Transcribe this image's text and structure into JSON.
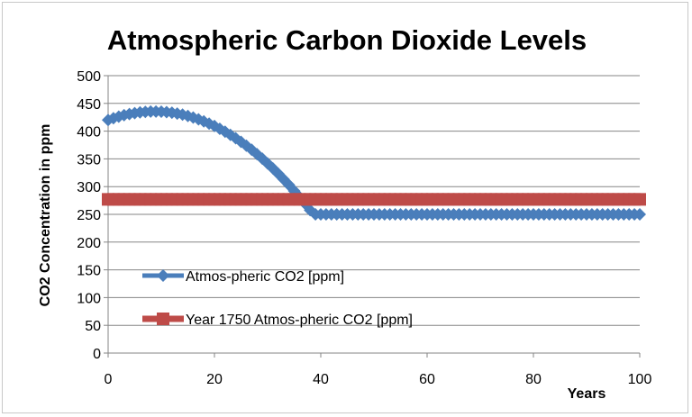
{
  "chart_data": {
    "type": "line",
    "title": "Atmospheric Carbon Dioxide Levels",
    "xlabel": "Years",
    "ylabel": "CO2 Concentration in ppm",
    "xlim": [
      0,
      100
    ],
    "ylim": [
      0,
      500
    ],
    "x_ticks": [
      0,
      20,
      40,
      60,
      80,
      100
    ],
    "y_ticks": [
      0,
      50,
      100,
      150,
      200,
      250,
      300,
      350,
      400,
      450,
      500
    ],
    "grid": "horizontal",
    "legend_position": "lower-left",
    "x": [
      0,
      1,
      2,
      3,
      4,
      5,
      6,
      7,
      8,
      9,
      10,
      11,
      12,
      13,
      14,
      15,
      16,
      17,
      18,
      19,
      20,
      21,
      22,
      23,
      24,
      25,
      26,
      27,
      28,
      29,
      30,
      31,
      32,
      33,
      34,
      35,
      36,
      37,
      38,
      39,
      40,
      41,
      42,
      43,
      44,
      45,
      46,
      47,
      48,
      49,
      50,
      51,
      52,
      53,
      54,
      55,
      56,
      57,
      58,
      59,
      60,
      61,
      62,
      63,
      64,
      65,
      66,
      67,
      68,
      69,
      70,
      71,
      72,
      73,
      74,
      75,
      76,
      77,
      78,
      79,
      80,
      81,
      82,
      83,
      84,
      85,
      86,
      87,
      88,
      89,
      90,
      91,
      92,
      93,
      94,
      95,
      96,
      97,
      98,
      99,
      100
    ],
    "series": [
      {
        "name": "Atmos-pheric CO2 [ppm]",
        "color": "#4a7ebb",
        "marker": "diamond",
        "values": [
          420,
          423.3,
          426.2,
          428.7,
          430.8,
          432.5,
          433.8,
          434.7,
          435.2,
          435.3,
          435.0,
          434.3,
          433.2,
          431.6,
          429.7,
          427.3,
          424.5,
          421.3,
          417.7,
          413.6,
          409.2,
          404.3,
          399.0,
          393.3,
          387.2,
          380.7,
          373.8,
          366.4,
          358.6,
          350.4,
          341.8,
          332.8,
          323.3,
          313.4,
          303.1,
          292.3,
          281.2,
          269.6,
          257.6,
          250,
          250,
          250,
          250,
          250,
          250,
          250,
          250,
          250,
          250,
          250,
          250,
          250,
          250,
          250,
          250,
          250,
          250,
          250,
          250,
          250,
          250,
          250,
          250,
          250,
          250,
          250,
          250,
          250,
          250,
          250,
          250,
          250,
          250,
          250,
          250,
          250,
          250,
          250,
          250,
          250,
          250,
          250,
          250,
          250,
          250,
          250,
          250,
          250,
          250,
          250,
          250,
          250,
          250,
          250,
          250,
          250,
          250,
          250,
          250,
          250,
          250
        ]
      },
      {
        "name": "Year 1750 Atmos-pheric CO2 [ppm]",
        "color": "#be4b48",
        "marker": "square",
        "values": [
          277,
          277,
          277,
          277,
          277,
          277,
          277,
          277,
          277,
          277,
          277,
          277,
          277,
          277,
          277,
          277,
          277,
          277,
          277,
          277,
          277,
          277,
          277,
          277,
          277,
          277,
          277,
          277,
          277,
          277,
          277,
          277,
          277,
          277,
          277,
          277,
          277,
          277,
          277,
          277,
          277,
          277,
          277,
          277,
          277,
          277,
          277,
          277,
          277,
          277,
          277,
          277,
          277,
          277,
          277,
          277,
          277,
          277,
          277,
          277,
          277,
          277,
          277,
          277,
          277,
          277,
          277,
          277,
          277,
          277,
          277,
          277,
          277,
          277,
          277,
          277,
          277,
          277,
          277,
          277,
          277,
          277,
          277,
          277,
          277,
          277,
          277,
          277,
          277,
          277,
          277,
          277,
          277,
          277,
          277,
          277,
          277,
          277,
          277,
          277,
          277
        ]
      }
    ]
  }
}
